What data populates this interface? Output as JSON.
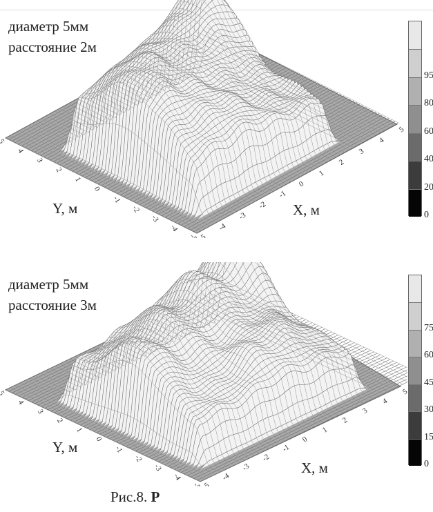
{
  "panels": [
    {
      "title_line1": "диаметр 5мм",
      "title_line2": "расстояние 2м",
      "y_label": "Y, м",
      "x_label": "X, м",
      "colorbar_ticks": [
        "0",
        "20",
        "40",
        "60",
        "80",
        "95"
      ],
      "y_ticks": [
        "5",
        "4",
        "3",
        "2",
        "1",
        "0",
        "-1",
        "-2",
        "-3",
        "-4",
        "-5"
      ],
      "x_ticks": [
        "-5",
        "-4",
        "-3",
        "-2",
        "-1",
        "0",
        "1",
        "2",
        "3",
        "4",
        "5"
      ]
    },
    {
      "title_line1": "диаметр 5мм",
      "title_line2": "расстояние 3м",
      "y_label": "Y, м",
      "x_label": "X, м",
      "colorbar_ticks": [
        "0",
        "15",
        "30",
        "45",
        "60",
        "75"
      ],
      "y_ticks": [
        "5",
        "4",
        "3",
        "2",
        "1",
        "0",
        "-1",
        "-2",
        "-3",
        "-4",
        "-5"
      ],
      "x_ticks": [
        "-5",
        "-4",
        "-3",
        "-2",
        "-1",
        "0",
        "1",
        "2",
        "3",
        "4",
        "5"
      ]
    }
  ],
  "caption": {
    "prefix": "Рис.8.",
    "bold": "Р"
  },
  "colors": {
    "surface": "#f2f2f2",
    "mesh": "#6a6a6a",
    "floor": "#8c8c8c"
  }
}
